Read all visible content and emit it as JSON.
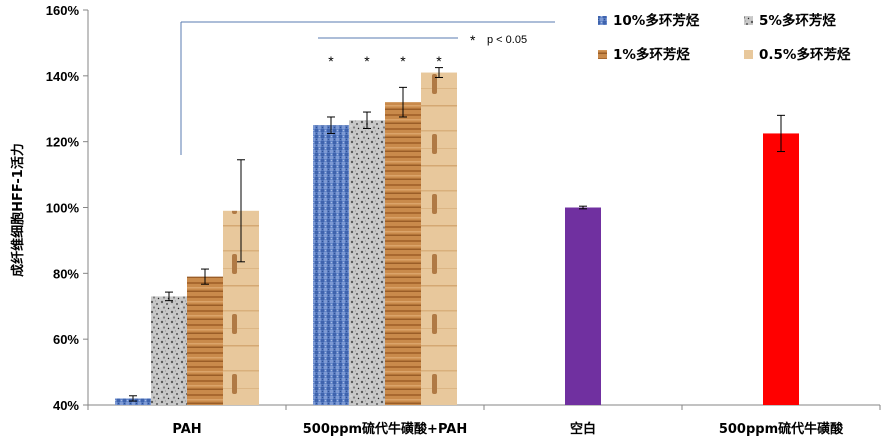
{
  "chart_data": {
    "type": "bar",
    "ylabel": "成纤维细胞HFF-1活力",
    "ylim": [
      40,
      160
    ],
    "yticks": [
      40,
      60,
      80,
      100,
      120,
      140,
      160
    ],
    "ytick_labels": [
      "40%",
      "60%",
      "80%",
      "100%",
      "120%",
      "140%",
      "160%"
    ],
    "categories": [
      "PAH",
      "500ppm硫代牛磺酸+PAH",
      "空白",
      "500ppm硫代牛磺酸"
    ],
    "series": [
      {
        "name": "10%多环芳烃",
        "pattern": "blue-denim",
        "values": [
          42,
          125,
          null,
          null
        ],
        "errors": [
          0.8,
          2.5,
          null,
          null
        ]
      },
      {
        "name": "5%多环芳烃",
        "pattern": "granite",
        "values": [
          73,
          126.5,
          null,
          null
        ],
        "errors": [
          1.3,
          2.5,
          null,
          null
        ]
      },
      {
        "name": "1%多环芳烃",
        "pattern": "wood-medium",
        "values": [
          79,
          132,
          null,
          null
        ],
        "errors": [
          2.3,
          4.5,
          null,
          null
        ]
      },
      {
        "name": "0.5%多环芳烃",
        "pattern": "wood-light",
        "values": [
          99,
          141,
          null,
          null
        ],
        "errors": [
          15.5,
          1.5,
          null,
          null
        ]
      }
    ],
    "single_bars": [
      {
        "category": "空白",
        "value": 100,
        "error": 0.4,
        "color": "#7030a0"
      },
      {
        "category": "500ppm硫代牛磺酸",
        "value": 122.5,
        "error": 5.5,
        "color": "#ff0000"
      }
    ],
    "annotations": {
      "stars": [
        "*",
        "*",
        "*",
        "*"
      ],
      "significance_text": "p < 0.05",
      "significance_symbol": "*"
    },
    "legend_position": "top-right",
    "grid": false
  }
}
